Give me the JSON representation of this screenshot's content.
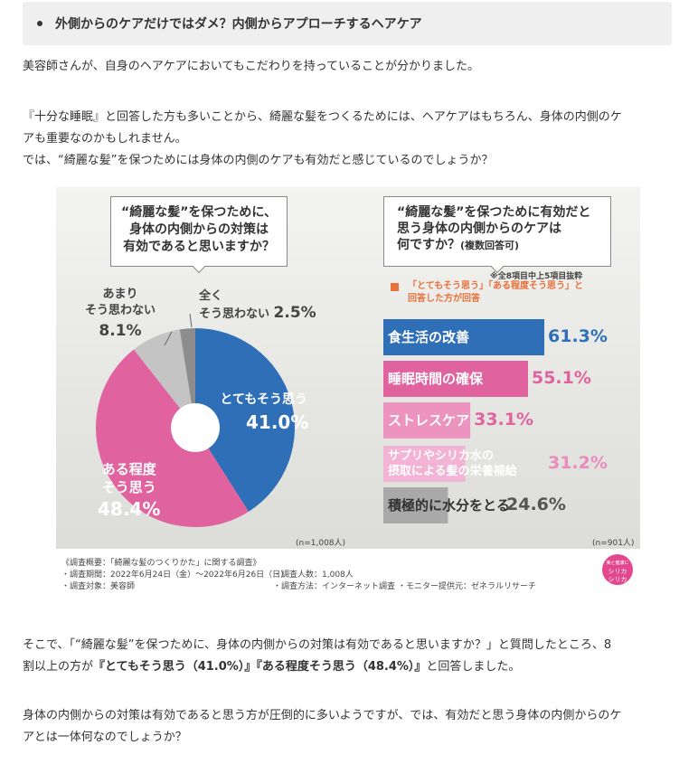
{
  "heading": "外側からのケアだけではダメ？内側からアプローチするヘアケア",
  "para1": "美容師さんが、自身のヘアケアにおいてもこだわりを持っていることが分かりました。",
  "para2": {
    "line1": "『十分な睡眠』と回答した方も多いことから、綺麗な髪をつくるためには、ヘアケアはもちろん、身体の内側のケ",
    "line2": "アも重要なのかもしれません。",
    "line3": "では、“綺麗な髪”を保つためには身体の内側のケアも有効だと感じているのでしょうか？"
  },
  "para3": {
    "line1": "そこで、「“綺麗な髪”を保つために、身体の内側からの対策は有効であると思いますか？」と質問したところ、8",
    "line2_pre": "割以上の方が",
    "line2_bold": "『とてもそう思う（41.0%）』『ある程度そう思う（48.4%）』",
    "line2_post": "と回答しました。"
  },
  "para4": {
    "line1": "身体の内側からの対策は有効であると思う方が圧倒的に多いようですが、では、有効だと思う身体の内側からのケ",
    "line2": "アとは一体何なのでしょうか？"
  },
  "chart_data": [
    {
      "type": "pie",
      "title": "“綺麗な髪”を保つために、身体の内側からの対策は有効であると思いますか？",
      "title_lines": [
        "“綺麗な髪”を保つために、",
        "身体の内側からの対策は",
        "有効であると思いますか？"
      ],
      "slices": [
        {
          "label": "とてもそう思う",
          "value": 41.0,
          "display": "41.0%",
          "color": "#2e6fb7"
        },
        {
          "label": "ある程度そう思う",
          "label_lines": [
            "ある程度",
            "そう思う"
          ],
          "value": 48.4,
          "display": "48.4%",
          "color": "#e0629f"
        },
        {
          "label": "あまりそう思わない",
          "label_lines": [
            "あまり",
            "そう思わない"
          ],
          "value": 8.1,
          "display": "8.1%",
          "color": "#c4c4c4"
        },
        {
          "label": "全くそう思わない",
          "label_lines": [
            "全く",
            "そう思わない"
          ],
          "value": 2.5,
          "display": "2.5%",
          "color": "#8d8d8d"
        }
      ],
      "n_label": "(n=1,008人)"
    },
    {
      "type": "bar",
      "title": "“綺麗な髪”を保つために有効だと思う身体の内側からのケアは何ですか？",
      "title_lines": [
        "“綺麗な髪”を保つために有効だと",
        "思う身体の内側からのケアは",
        "何ですか？"
      ],
      "title_note": "(複数回答可)",
      "note": "※全8項目中上5項目抜粋",
      "legend_lines": [
        "「とてもそう思う」「ある程度そう思う」と",
        "回答した方が回答"
      ],
      "legend_color": "#e8703a",
      "categories": [
        "食生活の改善",
        "睡眠時間の確保",
        "ストレスケア",
        "サプリやシリカ水の摂取による髪の栄養補給",
        "積極的に水分をとる"
      ],
      "category_lines": [
        [
          "食生活の改善"
        ],
        [
          "睡眠時間の確保"
        ],
        [
          "ストレスケア"
        ],
        [
          "サプリやシリカ水の",
          "摂取による髪の栄養補給"
        ],
        [
          "積極的に水分をとる"
        ]
      ],
      "values": [
        61.3,
        55.1,
        33.1,
        31.2,
        24.6
      ],
      "displays": [
        "61.3%",
        "55.1%",
        "33.1%",
        "31.2%",
        "24.6%"
      ],
      "colors": [
        "#2e6fb7",
        "#e0629f",
        "#ec93c0",
        "#f2b3d4",
        "#a9a9a9"
      ],
      "value_colors": [
        "#2e6fb7",
        "#e0629f",
        "#e0629f",
        "#e98cbd",
        "#555555"
      ],
      "n_label": "(n=901人)"
    }
  ],
  "footnote": {
    "line1": "《調査概要：「綺麗な髪のつくりかた」に関する調査》",
    "line2a": "・調査期間：2022年6月24日（金）～2022年6月26日（日）",
    "line2b": "・調査人数：1,008人",
    "line3a": "・調査対象：美容師",
    "line3b": "・調査方法：インターネット調査",
    "line3c": "・モニター提供元：ゼネラルリサーチ"
  },
  "logo_lines": [
    "美と健康に",
    "シリカ",
    "シリカ"
  ]
}
